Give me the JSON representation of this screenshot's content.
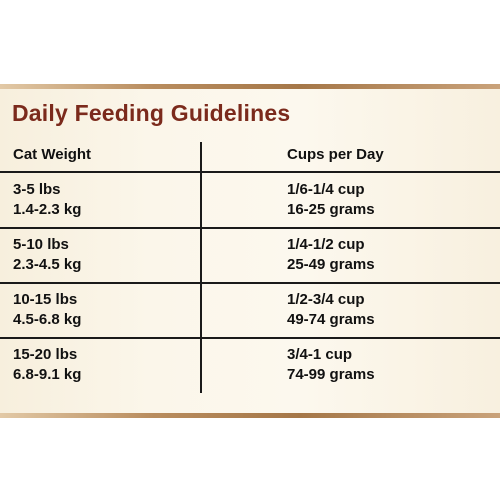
{
  "title": "Daily Feeding Guidelines",
  "table": {
    "headers": [
      "Cat Weight",
      "Cups per Day"
    ],
    "rows": [
      {
        "weight": [
          "3-5 lbs",
          "1.4-2.3 kg"
        ],
        "amount": [
          "1/6-1/4 cup",
          "16-25 grams"
        ]
      },
      {
        "weight": [
          "5-10 lbs",
          "2.3-4.5 kg"
        ],
        "amount": [
          "1/4-1/2 cup",
          "25-49 grams"
        ]
      },
      {
        "weight": [
          "10-15 lbs",
          "4.5-6.8 kg"
        ],
        "amount": [
          "1/2-3/4 cup",
          "49-74 grams"
        ]
      },
      {
        "weight": [
          "15-20 lbs",
          "6.8-9.1 kg"
        ],
        "amount": [
          "3/4-1 cup",
          "74-99 grams"
        ]
      }
    ]
  },
  "colors": {
    "title": "#7b2a1c",
    "band": "#a57748",
    "panel": "#fbf6ea"
  }
}
